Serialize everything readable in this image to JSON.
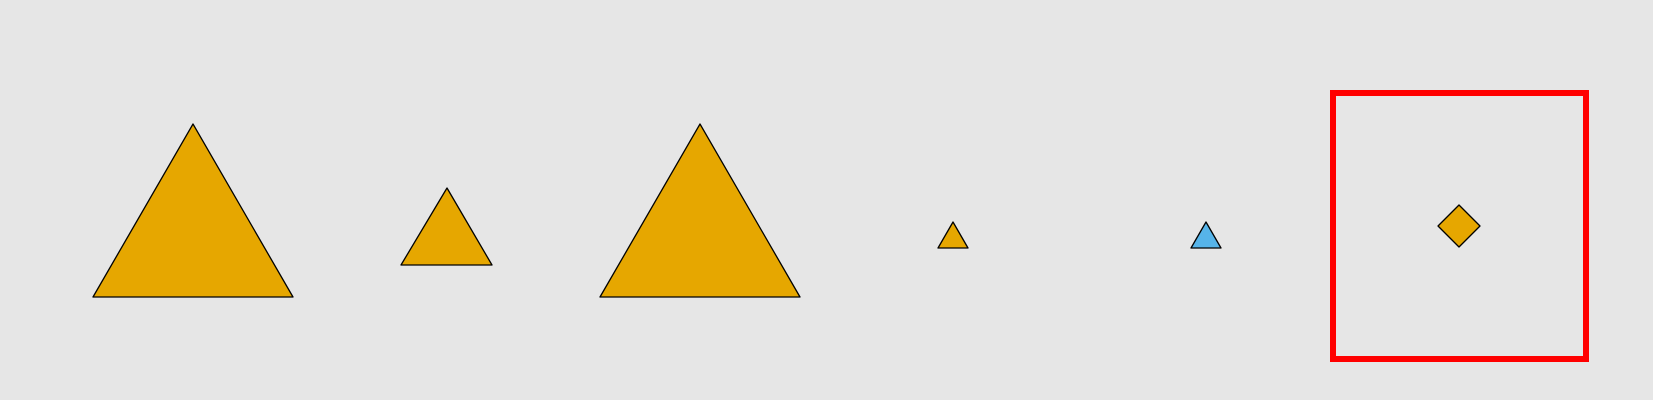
{
  "background": "#e6e6e6",
  "colors": {
    "shape_fill_default": "#e6a700",
    "shape_fill_odd": "#56b4e9",
    "stroke": "#000000",
    "highlight": "#ff0000"
  },
  "shapes": [
    {
      "kind": "triangle",
      "size": "large",
      "fill": "#e6a700"
    },
    {
      "kind": "triangle",
      "size": "medium",
      "fill": "#e6a700"
    },
    {
      "kind": "triangle",
      "size": "large",
      "fill": "#e6a700"
    },
    {
      "kind": "triangle",
      "size": "small",
      "fill": "#e6a700"
    },
    {
      "kind": "triangle",
      "size": "small",
      "fill": "#56b4e9"
    },
    {
      "kind": "diamond",
      "size": "small",
      "fill": "#e6a700",
      "highlighted": true
    }
  ]
}
